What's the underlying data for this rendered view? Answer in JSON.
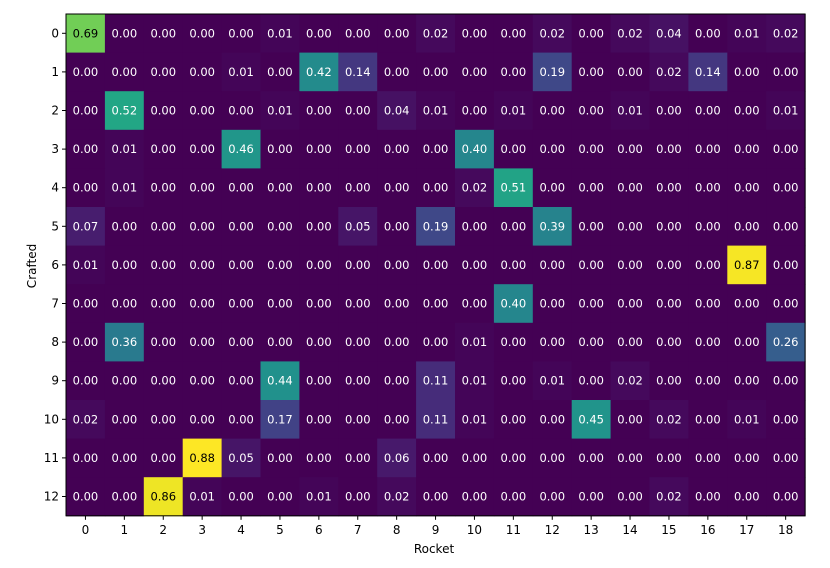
{
  "chart_data": {
    "type": "heatmap",
    "xlabel": "Rocket",
    "ylabel": "Crafted",
    "x_categories": [
      "0",
      "1",
      "2",
      "3",
      "4",
      "5",
      "6",
      "7",
      "8",
      "9",
      "10",
      "11",
      "12",
      "13",
      "14",
      "15",
      "16",
      "17",
      "18"
    ],
    "y_categories": [
      "0",
      "1",
      "2",
      "3",
      "4",
      "5",
      "6",
      "7",
      "8",
      "9",
      "10",
      "11",
      "12"
    ],
    "value_range": [
      0,
      0.88
    ],
    "colormap": "viridis",
    "values": [
      [
        0.69,
        0.0,
        0.0,
        0.0,
        0.0,
        0.01,
        0.0,
        0.0,
        0.0,
        0.02,
        0.0,
        0.0,
        0.02,
        0.0,
        0.02,
        0.04,
        0.0,
        0.01,
        0.02
      ],
      [
        0.0,
        0.0,
        0.0,
        0.0,
        0.01,
        0.0,
        0.42,
        0.14,
        0.0,
        0.0,
        0.0,
        0.0,
        0.19,
        0.0,
        0.0,
        0.02,
        0.14,
        0.0,
        0.0
      ],
      [
        0.0,
        0.52,
        0.0,
        0.0,
        0.0,
        0.01,
        0.0,
        0.0,
        0.04,
        0.01,
        0.0,
        0.01,
        0.0,
        0.0,
        0.01,
        0.0,
        0.0,
        0.0,
        0.01
      ],
      [
        0.0,
        0.01,
        0.0,
        0.0,
        0.46,
        0.0,
        0.0,
        0.0,
        0.0,
        0.0,
        0.4,
        0.0,
        0.0,
        0.0,
        0.0,
        0.0,
        0.0,
        0.0,
        0.0
      ],
      [
        0.0,
        0.01,
        0.0,
        0.0,
        0.0,
        0.0,
        0.0,
        0.0,
        0.0,
        0.0,
        0.02,
        0.51,
        0.0,
        0.0,
        0.0,
        0.0,
        0.0,
        0.0,
        0.0
      ],
      [
        0.07,
        0.0,
        0.0,
        0.0,
        0.0,
        0.0,
        0.0,
        0.05,
        0.0,
        0.19,
        0.0,
        0.0,
        0.39,
        0.0,
        0.0,
        0.0,
        0.0,
        0.0,
        0.0
      ],
      [
        0.01,
        0.0,
        0.0,
        0.0,
        0.0,
        0.0,
        0.0,
        0.0,
        0.0,
        0.0,
        0.0,
        0.0,
        0.0,
        0.0,
        0.0,
        0.0,
        0.0,
        0.87,
        0.0
      ],
      [
        0.0,
        0.0,
        0.0,
        0.0,
        0.0,
        0.0,
        0.0,
        0.0,
        0.0,
        0.0,
        0.0,
        0.4,
        0.0,
        0.0,
        0.0,
        0.0,
        0.0,
        0.0,
        0.0
      ],
      [
        0.0,
        0.36,
        0.0,
        0.0,
        0.0,
        0.0,
        0.0,
        0.0,
        0.0,
        0.0,
        0.01,
        0.0,
        0.0,
        0.0,
        0.0,
        0.0,
        0.0,
        0.0,
        0.26
      ],
      [
        0.0,
        0.0,
        0.0,
        0.0,
        0.0,
        0.44,
        0.0,
        0.0,
        0.0,
        0.11,
        0.01,
        0.0,
        0.01,
        0.0,
        0.02,
        0.0,
        0.0,
        0.0,
        0.0
      ],
      [
        0.02,
        0.0,
        0.0,
        0.0,
        0.0,
        0.17,
        0.0,
        0.0,
        0.0,
        0.11,
        0.01,
        0.0,
        0.0,
        0.45,
        0.0,
        0.02,
        0.0,
        0.01,
        0.0
      ],
      [
        0.0,
        0.0,
        0.0,
        0.88,
        0.05,
        0.0,
        0.0,
        0.0,
        0.06,
        0.0,
        0.0,
        0.0,
        0.0,
        0.0,
        0.0,
        0.0,
        0.0,
        0.0,
        0.0
      ],
      [
        0.0,
        0.0,
        0.86,
        0.01,
        0.0,
        0.0,
        0.01,
        0.0,
        0.02,
        0.0,
        0.0,
        0.0,
        0.0,
        0.0,
        0.0,
        0.02,
        0.0,
        0.0,
        0.0
      ]
    ]
  }
}
